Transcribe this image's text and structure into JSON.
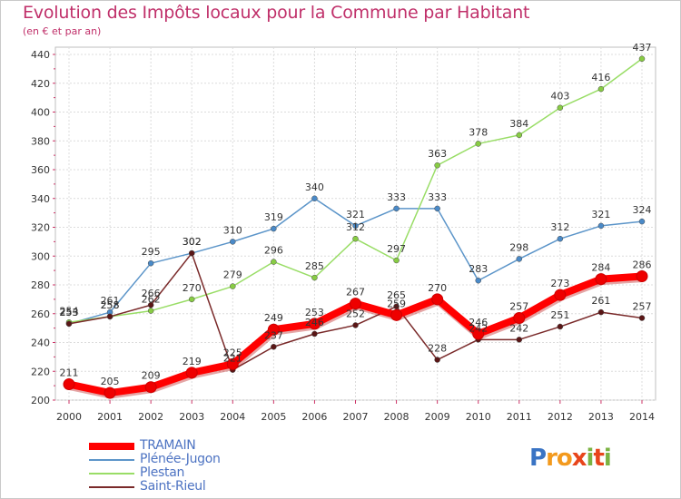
{
  "header": {
    "title": "Evolution des Impôts locaux pour la Commune par Habitant",
    "subtitle": "(en € et par an)"
  },
  "logo": {
    "letters": [
      {
        "ch": "P",
        "color": "#3a74c4"
      },
      {
        "ch": "r",
        "color": "#f39a1e"
      },
      {
        "ch": "o",
        "color": "#f39a1e"
      },
      {
        "ch": "x",
        "color": "#e8451b"
      },
      {
        "ch": "i",
        "color": "#7bb342"
      },
      {
        "ch": "t",
        "color": "#e8451b"
      },
      {
        "ch": "i",
        "color": "#7bb342"
      }
    ]
  },
  "chart_data": {
    "type": "line",
    "x": [
      "2000",
      "2001",
      "2002",
      "2003",
      "2004",
      "2005",
      "2006",
      "2007",
      "2008",
      "2009",
      "2010",
      "2011",
      "2012",
      "2013",
      "2014"
    ],
    "ylim": [
      200,
      440
    ],
    "yticks": [
      200,
      220,
      240,
      260,
      280,
      300,
      320,
      340,
      360,
      380,
      400,
      420,
      440
    ],
    "grid": true,
    "legend_position": "bottom-left",
    "series": [
      {
        "name": "TRAMAIN",
        "color": "#ff0000",
        "marker_color": "#ee0000",
        "values": [
          211,
          205,
          209,
          219,
          225,
          249,
          253,
          267,
          259,
          270,
          246,
          257,
          273,
          284,
          286
        ]
      },
      {
        "name": "Plénée-Jugon",
        "color": "#5c95c9",
        "marker_color": "#4a8ac8",
        "values": [
          253,
          261,
          295,
          302,
          310,
          319,
          340,
          321,
          333,
          333,
          283,
          298,
          312,
          321,
          324
        ]
      },
      {
        "name": "Plestan",
        "color": "#99dd66",
        "marker_color": "#88cc44",
        "values": [
          254,
          258,
          262,
          270,
          279,
          296,
          285,
          312,
          297,
          363,
          378,
          384,
          403,
          416,
          437
        ]
      },
      {
        "name": "Saint-Rieul",
        "color": "#7a2a2a",
        "marker_color": "#5a1616",
        "values": [
          253,
          258,
          266,
          302,
          221,
          237,
          246,
          252,
          265,
          228,
          242,
          242,
          251,
          261,
          257
        ]
      }
    ]
  }
}
